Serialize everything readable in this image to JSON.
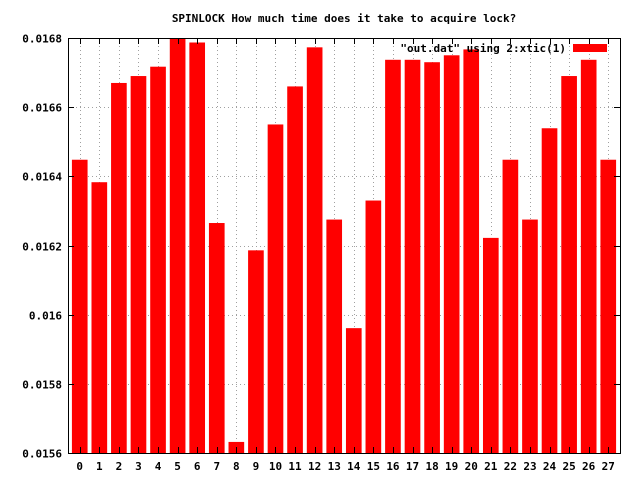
{
  "chart_data": {
    "type": "bar",
    "title": "SPINLOCK How much time does it take to acquire lock?",
    "xlabel": "",
    "ylabel": "",
    "legend": {
      "label": "\"out.dat\" using 2:xtic(1)",
      "position": "top-right"
    },
    "bar_color": "#ff0000",
    "grid": true,
    "ylim": [
      0.0156,
      0.0168
    ],
    "yticks": [
      {
        "value": 0.0156,
        "label": "0.0156"
      },
      {
        "value": 0.0158,
        "label": "0.0158"
      },
      {
        "value": 0.016,
        "label": "0.016"
      },
      {
        "value": 0.0162,
        "label": "0.0162"
      },
      {
        "value": 0.0164,
        "label": "0.0164"
      },
      {
        "value": 0.0166,
        "label": "0.0166"
      },
      {
        "value": 0.0168,
        "label": "0.0168"
      }
    ],
    "categories": [
      "0",
      "1",
      "2",
      "3",
      "4",
      "5",
      "6",
      "7",
      "8",
      "9",
      "10",
      "11",
      "12",
      "13",
      "14",
      "15",
      "16",
      "17",
      "18",
      "19",
      "20",
      "21",
      "22",
      "23",
      "24",
      "25",
      "26",
      "27"
    ],
    "values": [
      0.016448,
      0.016383,
      0.01667,
      0.01669,
      0.016717,
      0.0168,
      0.016787,
      0.016265,
      0.015632,
      0.016186,
      0.01655,
      0.01666,
      0.016773,
      0.016275,
      0.015961,
      0.01633,
      0.016737,
      0.016737,
      0.01673,
      0.01675,
      0.016767,
      0.016222,
      0.016448,
      0.016275,
      0.016539,
      0.01669,
      0.016737,
      0.016448
    ]
  }
}
